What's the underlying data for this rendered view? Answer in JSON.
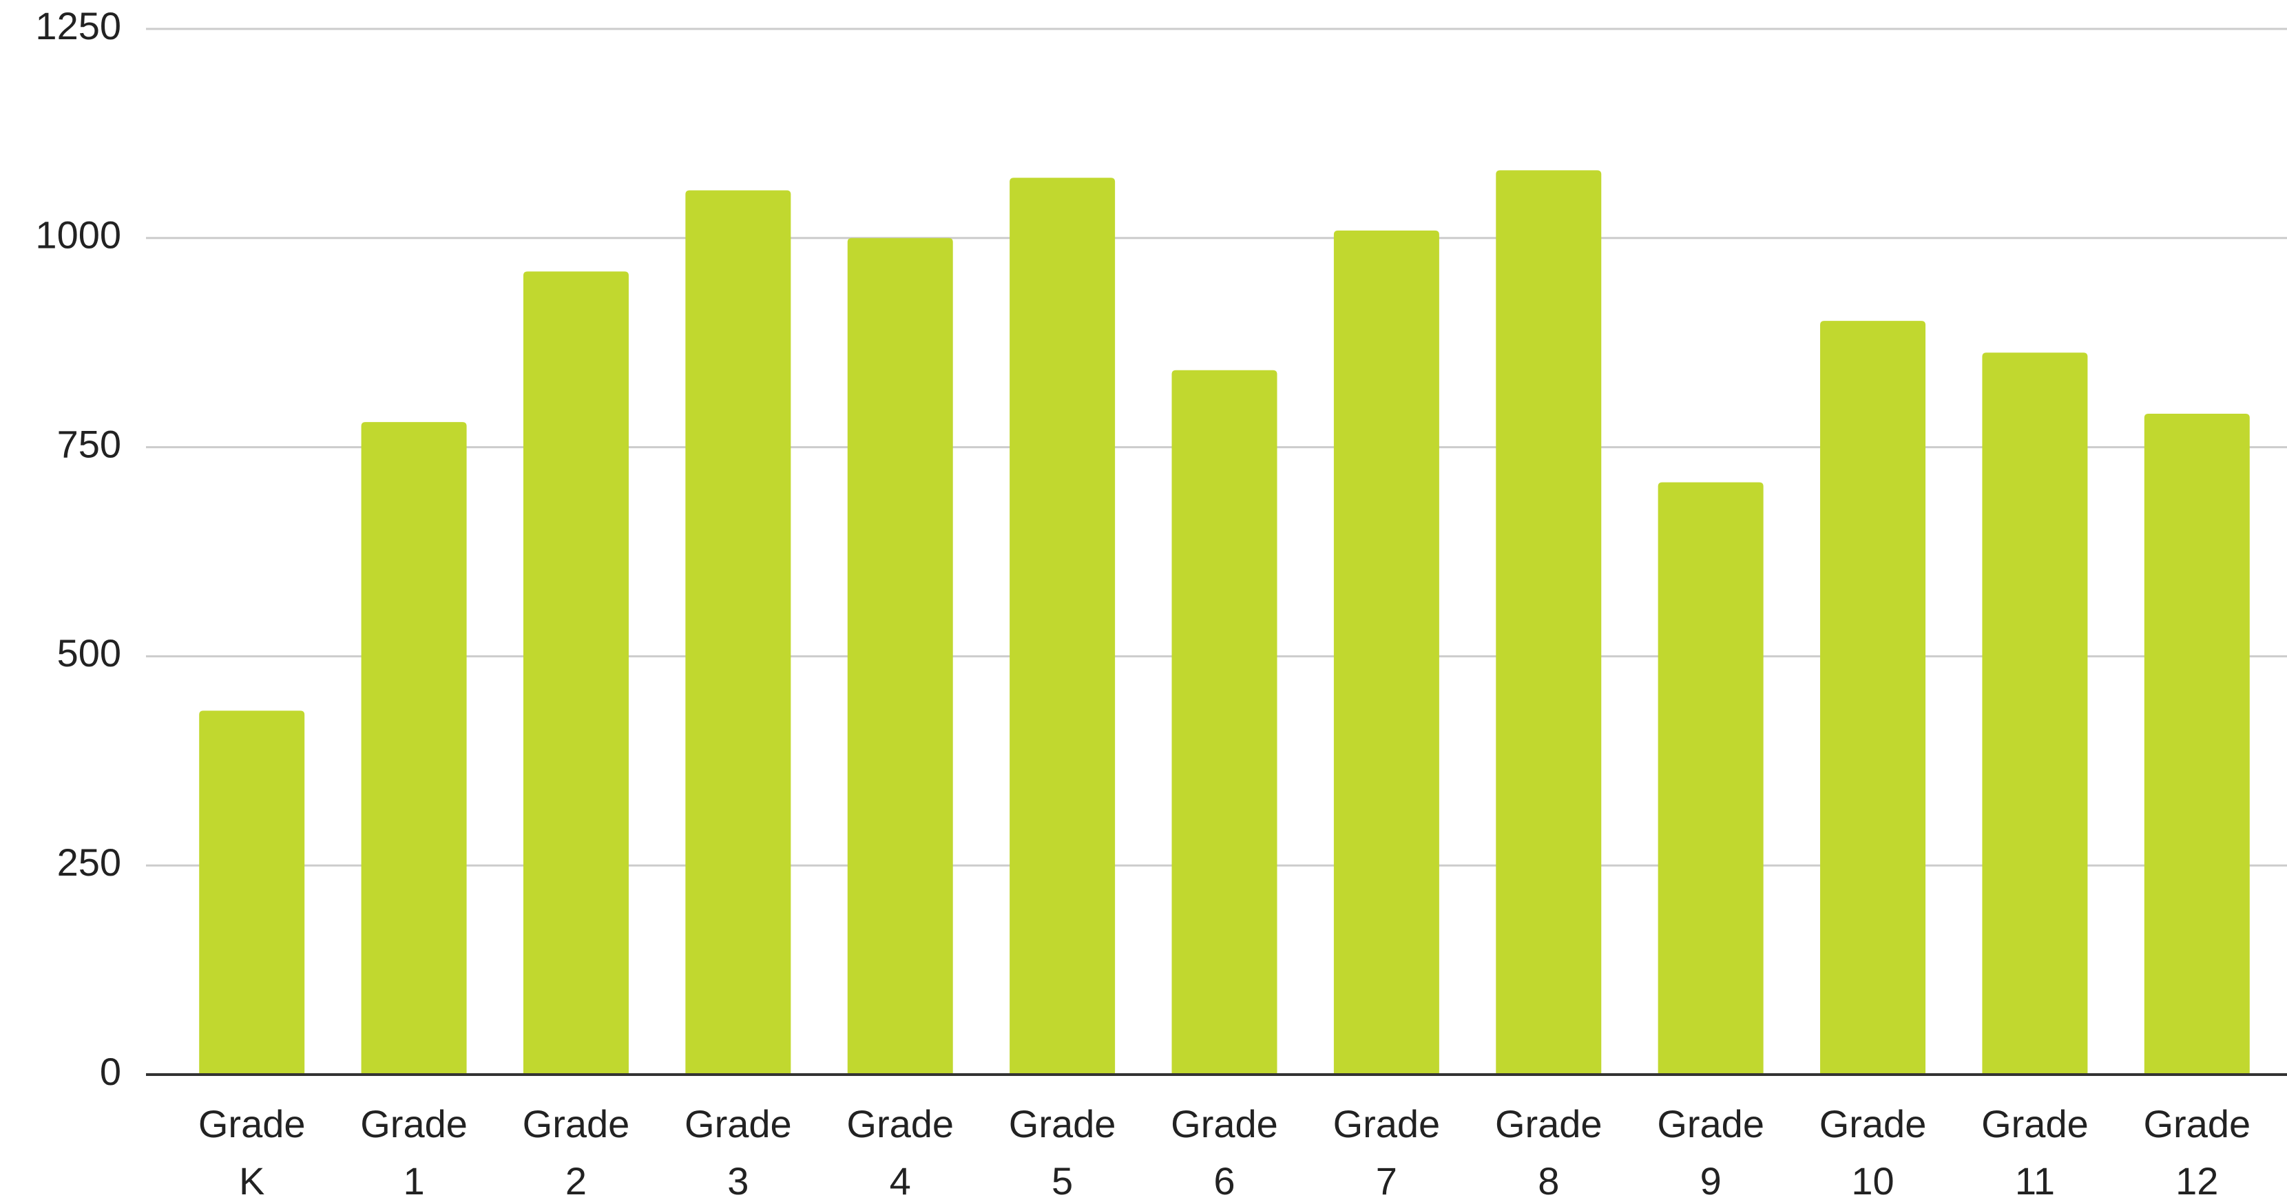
{
  "chart_data": {
    "type": "bar",
    "categories": [
      "Grade K",
      "Grade 1",
      "Grade 2",
      "Grade 3",
      "Grade 4",
      "Grade 5",
      "Grade 6",
      "Grade 7",
      "Grade 8",
      "Grade 9",
      "Grade 10",
      "Grade 11",
      "Grade 12"
    ],
    "values": [
      435,
      780,
      960,
      1057,
      1000,
      1072,
      842,
      1009,
      1081,
      708,
      901,
      863,
      790
    ],
    "color": "#c1d82f",
    "ylim": [
      0,
      1250
    ],
    "yticks": [
      0,
      250,
      500,
      750,
      1000,
      1250
    ],
    "grid": true
  }
}
